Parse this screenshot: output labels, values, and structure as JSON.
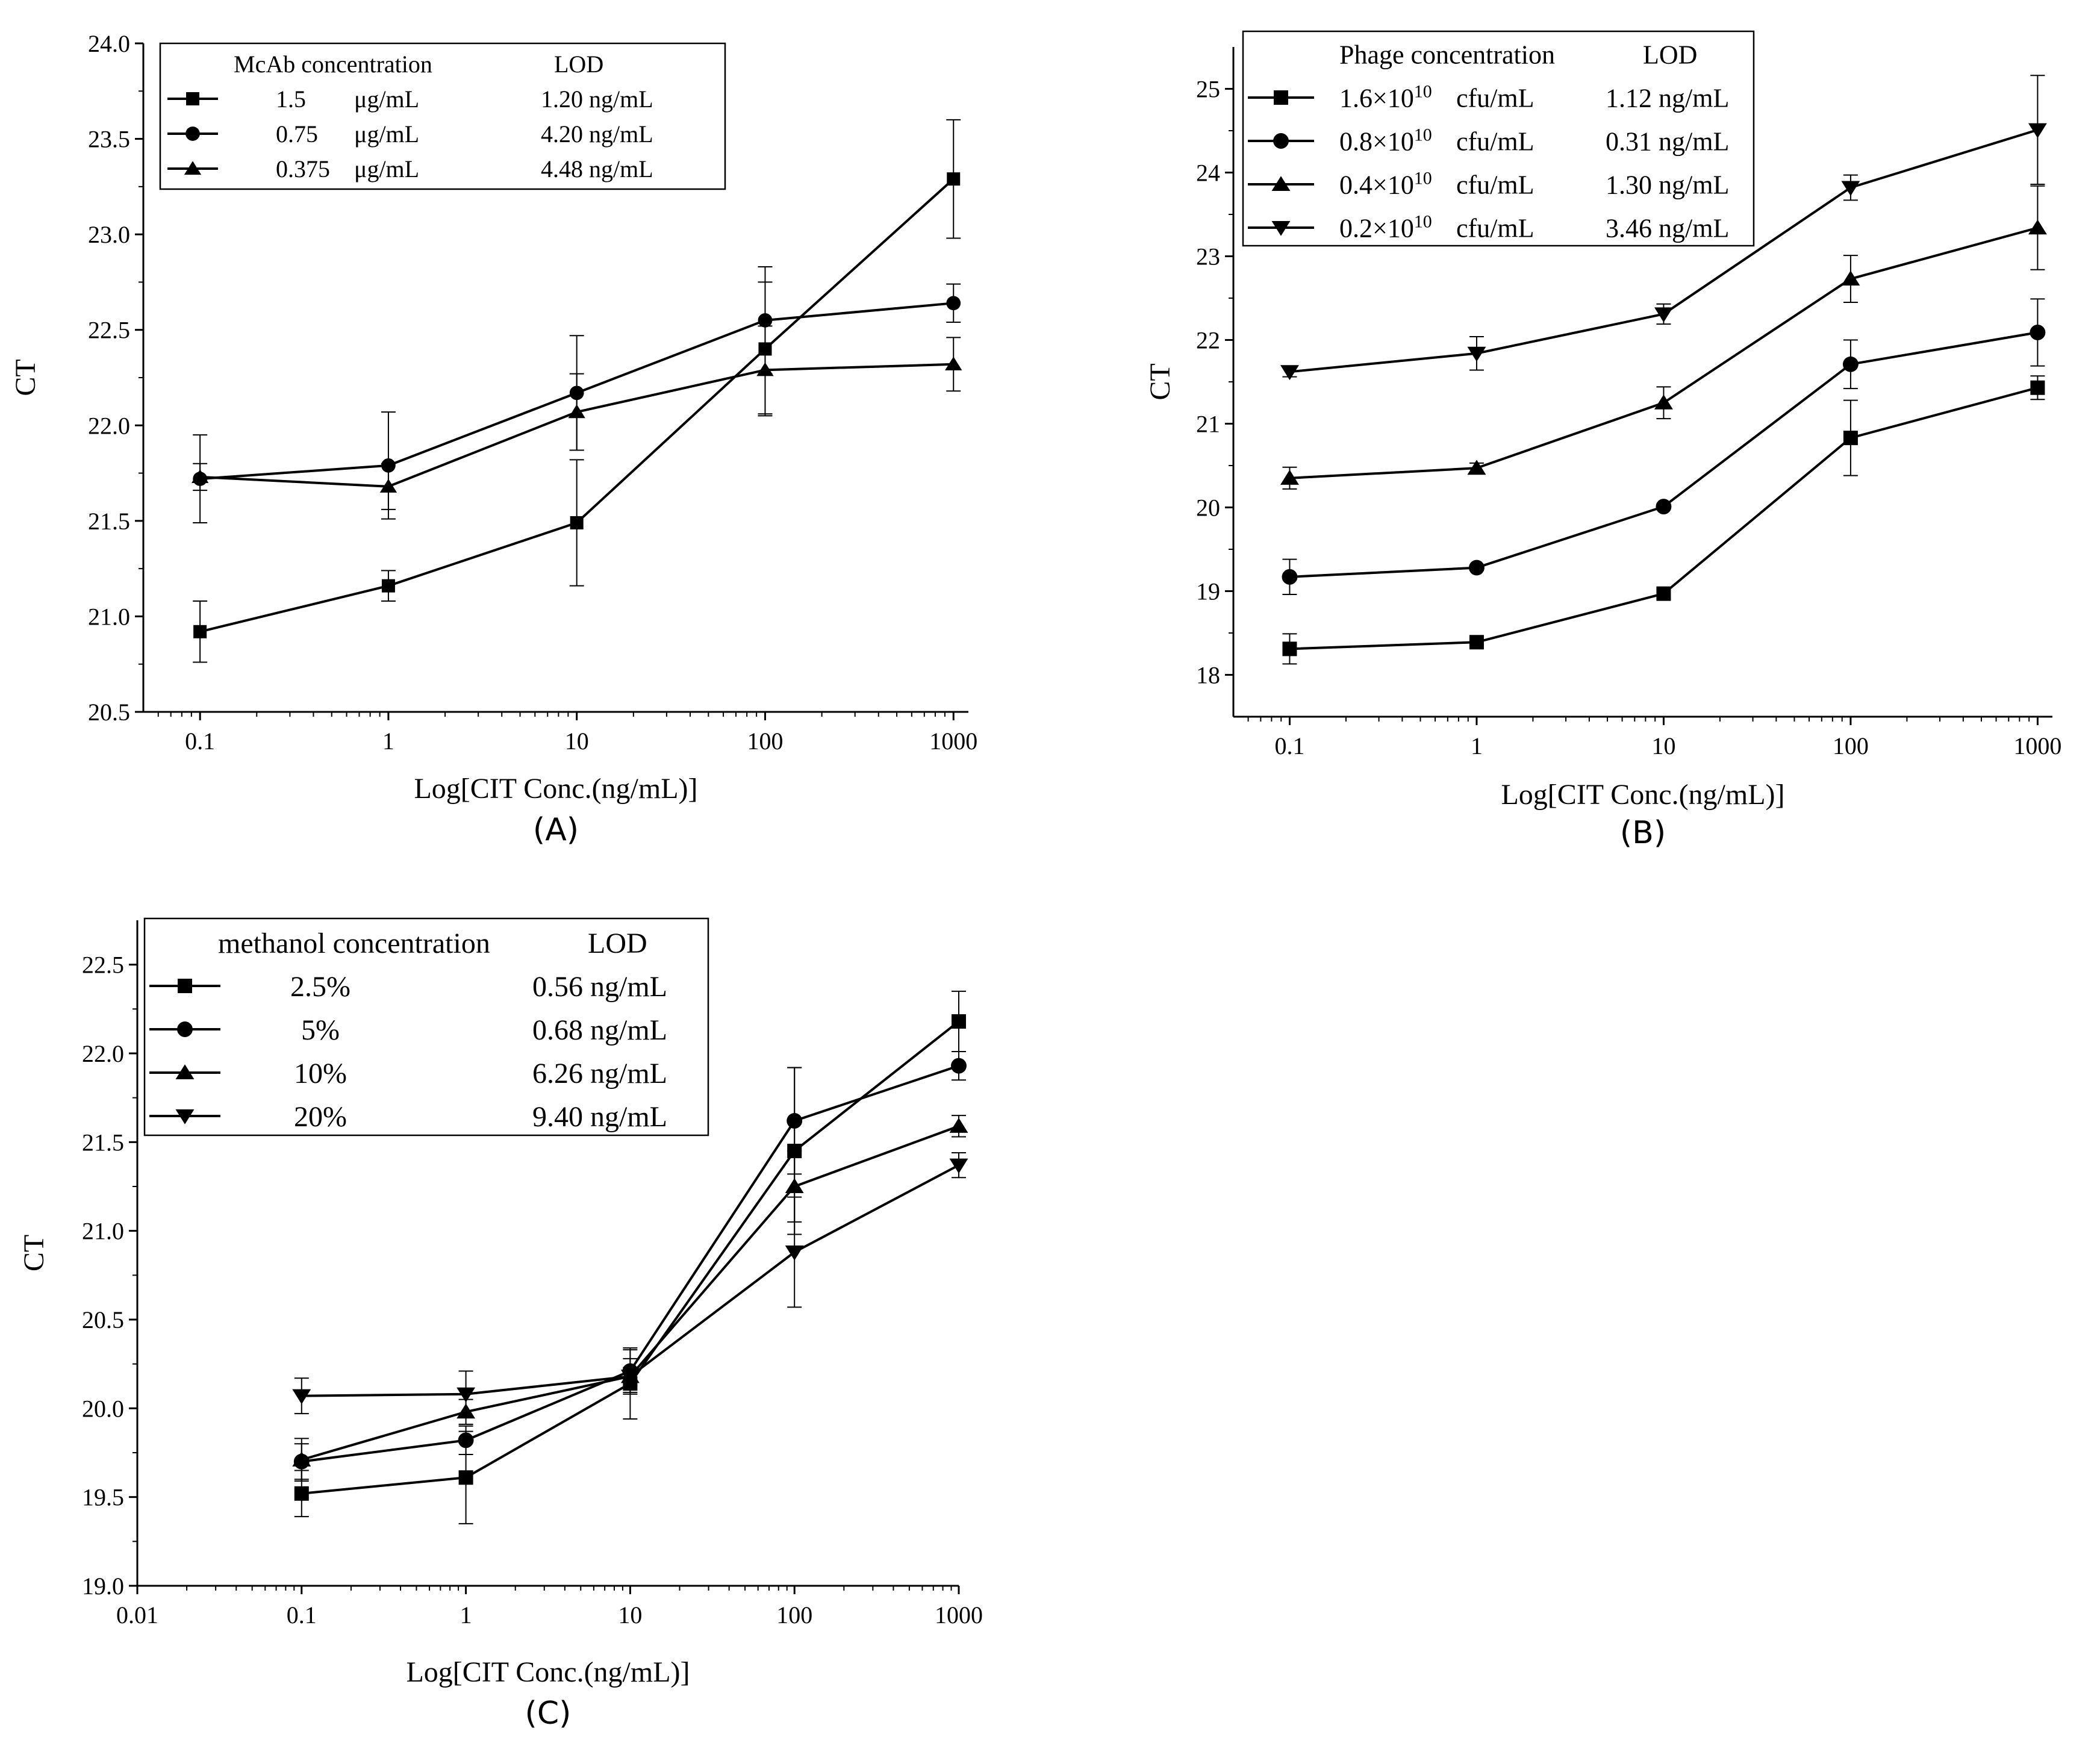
{
  "chart_data": [
    {
      "id": "A",
      "type": "line",
      "panel_label": "(A)",
      "xscale": "log",
      "xlabel": "Log[CIT Conc.(ng/mL)]",
      "ylabel": "CT",
      "xlim": [
        0.05,
        1200
      ],
      "ylim": [
        20.5,
        24.0
      ],
      "x_ticks": [
        0.1,
        1,
        10,
        100,
        1000
      ],
      "x_tick_labels": [
        "0.1",
        "1",
        "10",
        "100",
        "1000"
      ],
      "y_ticks": [
        20.5,
        21.0,
        21.5,
        22.0,
        22.5,
        23.0,
        23.5,
        24.0
      ],
      "y_tick_labels": [
        "20.5",
        "21.0",
        "21.5",
        "22.0",
        "22.5",
        "23.0",
        "23.5",
        "24.0"
      ],
      "legend": {
        "headers": [
          "McAb concentration",
          "LOD"
        ],
        "entries": [
          {
            "marker": "square",
            "cells": [
              "1.5",
              "μg/mL",
              "1.20 ng/mL"
            ]
          },
          {
            "marker": "circle",
            "cells": [
              "0.75",
              "μg/mL",
              "4.20 ng/mL"
            ]
          },
          {
            "marker": "triangle-up",
            "cells": [
              "0.375",
              "μg/mL",
              "4.48 ng/mL"
            ]
          }
        ]
      },
      "x": [
        0.1,
        1,
        10,
        100,
        1000
      ],
      "series": [
        {
          "name": "1.5 μg/mL",
          "marker": "square",
          "values": [
            20.92,
            21.16,
            21.49,
            22.4,
            23.29
          ],
          "errors": [
            0.16,
            0.08,
            0.33,
            0.35,
            0.31
          ]
        },
        {
          "name": "0.75 μg/mL",
          "marker": "circle",
          "values": [
            21.72,
            21.79,
            22.17,
            22.55,
            22.64
          ],
          "errors": [
            0.23,
            0.28,
            0.3,
            0.28,
            0.1
          ]
        },
        {
          "name": "0.375 μg/mL",
          "marker": "triangle-up",
          "values": [
            21.73,
            21.68,
            22.07,
            22.29,
            22.32
          ],
          "errors": [
            0.07,
            0.12,
            0.2,
            0.23,
            0.14
          ]
        }
      ]
    },
    {
      "id": "B",
      "type": "line",
      "panel_label": "(B)",
      "xscale": "log",
      "xlabel": "Log[CIT Conc.(ng/mL)]",
      "ylabel": "CT",
      "xlim": [
        0.05,
        1200
      ],
      "ylim": [
        17.5,
        25.5
      ],
      "x_ticks": [
        0.1,
        1,
        10,
        100,
        1000
      ],
      "x_tick_labels": [
        "0.1",
        "1",
        "10",
        "100",
        "1000"
      ],
      "y_ticks": [
        18,
        19,
        20,
        21,
        22,
        23,
        24,
        25
      ],
      "y_tick_labels": [
        "18",
        "19",
        "20",
        "21",
        "22",
        "23",
        "24",
        "25"
      ],
      "legend": {
        "headers": [
          "Phage concentration",
          "LOD"
        ],
        "entries": [
          {
            "marker": "square",
            "base": "1.6×10",
            "exp": "10",
            "unit": "cfu/mL",
            "lod": "1.12 ng/mL"
          },
          {
            "marker": "circle",
            "base": "0.8×10",
            "exp": "10",
            "unit": "cfu/mL",
            "lod": "0.31 ng/mL"
          },
          {
            "marker": "triangle-up",
            "base": "0.4×10",
            "exp": "10",
            "unit": "cfu/mL",
            "lod": "1.30 ng/mL"
          },
          {
            "marker": "triangle-down",
            "base": "0.2×10",
            "exp": "10",
            "unit": "cfu/mL",
            "lod": "3.46 ng/mL"
          }
        ]
      },
      "x": [
        0.1,
        1,
        10,
        100,
        1000
      ],
      "series": [
        {
          "name": "1.6×10^10 cfu/mL",
          "marker": "square",
          "values": [
            18.31,
            18.39,
            18.97,
            20.83,
            21.43
          ],
          "errors": [
            0.18,
            0.03,
            0.05,
            0.45,
            0.14
          ]
        },
        {
          "name": "0.8×10^10 cfu/mL",
          "marker": "circle",
          "values": [
            19.17,
            19.28,
            20.01,
            21.71,
            22.09
          ],
          "errors": [
            0.21,
            0.03,
            0.03,
            0.29,
            0.4
          ]
        },
        {
          "name": "0.4×10^10 cfu/mL",
          "marker": "triangle-up",
          "values": [
            20.35,
            20.47,
            21.25,
            22.73,
            23.34
          ],
          "errors": [
            0.13,
            0.06,
            0.19,
            0.28,
            0.5
          ]
        },
        {
          "name": "0.2×10^10 cfu/mL",
          "marker": "triangle-down",
          "values": [
            21.62,
            21.84,
            22.31,
            23.82,
            24.51
          ],
          "errors": [
            0.06,
            0.2,
            0.12,
            0.15,
            0.65
          ]
        }
      ]
    },
    {
      "id": "C",
      "type": "line",
      "panel_label": "(C)",
      "xscale": "log",
      "xlabel": "Log[CIT Conc.(ng/mL)]",
      "ylabel": "CT",
      "xlim": [
        0.01,
        1000
      ],
      "ylim": [
        19.0,
        22.75
      ],
      "x_ticks": [
        0.01,
        0.1,
        1,
        10,
        100,
        1000
      ],
      "x_tick_labels": [
        "0.01",
        "0.1",
        "1",
        "10",
        "100",
        "1000"
      ],
      "y_ticks": [
        19.0,
        19.5,
        20.0,
        20.5,
        21.0,
        21.5,
        22.0,
        22.5
      ],
      "y_tick_labels": [
        "19.0",
        "19.5",
        "20.0",
        "20.5",
        "21.0",
        "21.5",
        "22.0",
        "22.5"
      ],
      "legend": {
        "headers": [
          "methanol concentration",
          "LOD"
        ],
        "entries": [
          {
            "marker": "square",
            "cells": [
              "2.5%",
              "0.56 ng/mL"
            ]
          },
          {
            "marker": "circle",
            "cells": [
              "5%",
              "0.68 ng/mL"
            ]
          },
          {
            "marker": "triangle-up",
            "cells": [
              "10%",
              "6.26 ng/mL"
            ]
          },
          {
            "marker": "triangle-down",
            "cells": [
              "20%",
              "9.40 ng/mL"
            ]
          }
        ]
      },
      "x": [
        0.1,
        1,
        10,
        100,
        1000
      ],
      "series": [
        {
          "name": "2.5%",
          "marker": "square",
          "values": [
            19.52,
            19.61,
            20.14,
            21.45,
            22.18
          ],
          "errors": [
            0.13,
            0.26,
            0.2,
            0.47,
            0.17
          ]
        },
        {
          "name": "5%",
          "marker": "circle",
          "values": [
            19.7,
            19.82,
            20.21,
            21.62,
            21.93
          ],
          "errors": [
            0.1,
            0.08,
            0.12,
            0.3,
            0.08
          ]
        },
        {
          "name": "10%",
          "marker": "triangle-up",
          "values": [
            19.71,
            19.98,
            20.18,
            21.25,
            21.59
          ],
          "errors": [
            0.12,
            0.07,
            0.1,
            0.2,
            0.06
          ]
        },
        {
          "name": "20%",
          "marker": "triangle-down",
          "values": [
            20.07,
            20.08,
            20.18,
            20.88,
            21.37
          ],
          "errors": [
            0.1,
            0.13,
            0.05,
            0.31,
            0.07
          ]
        }
      ]
    }
  ]
}
